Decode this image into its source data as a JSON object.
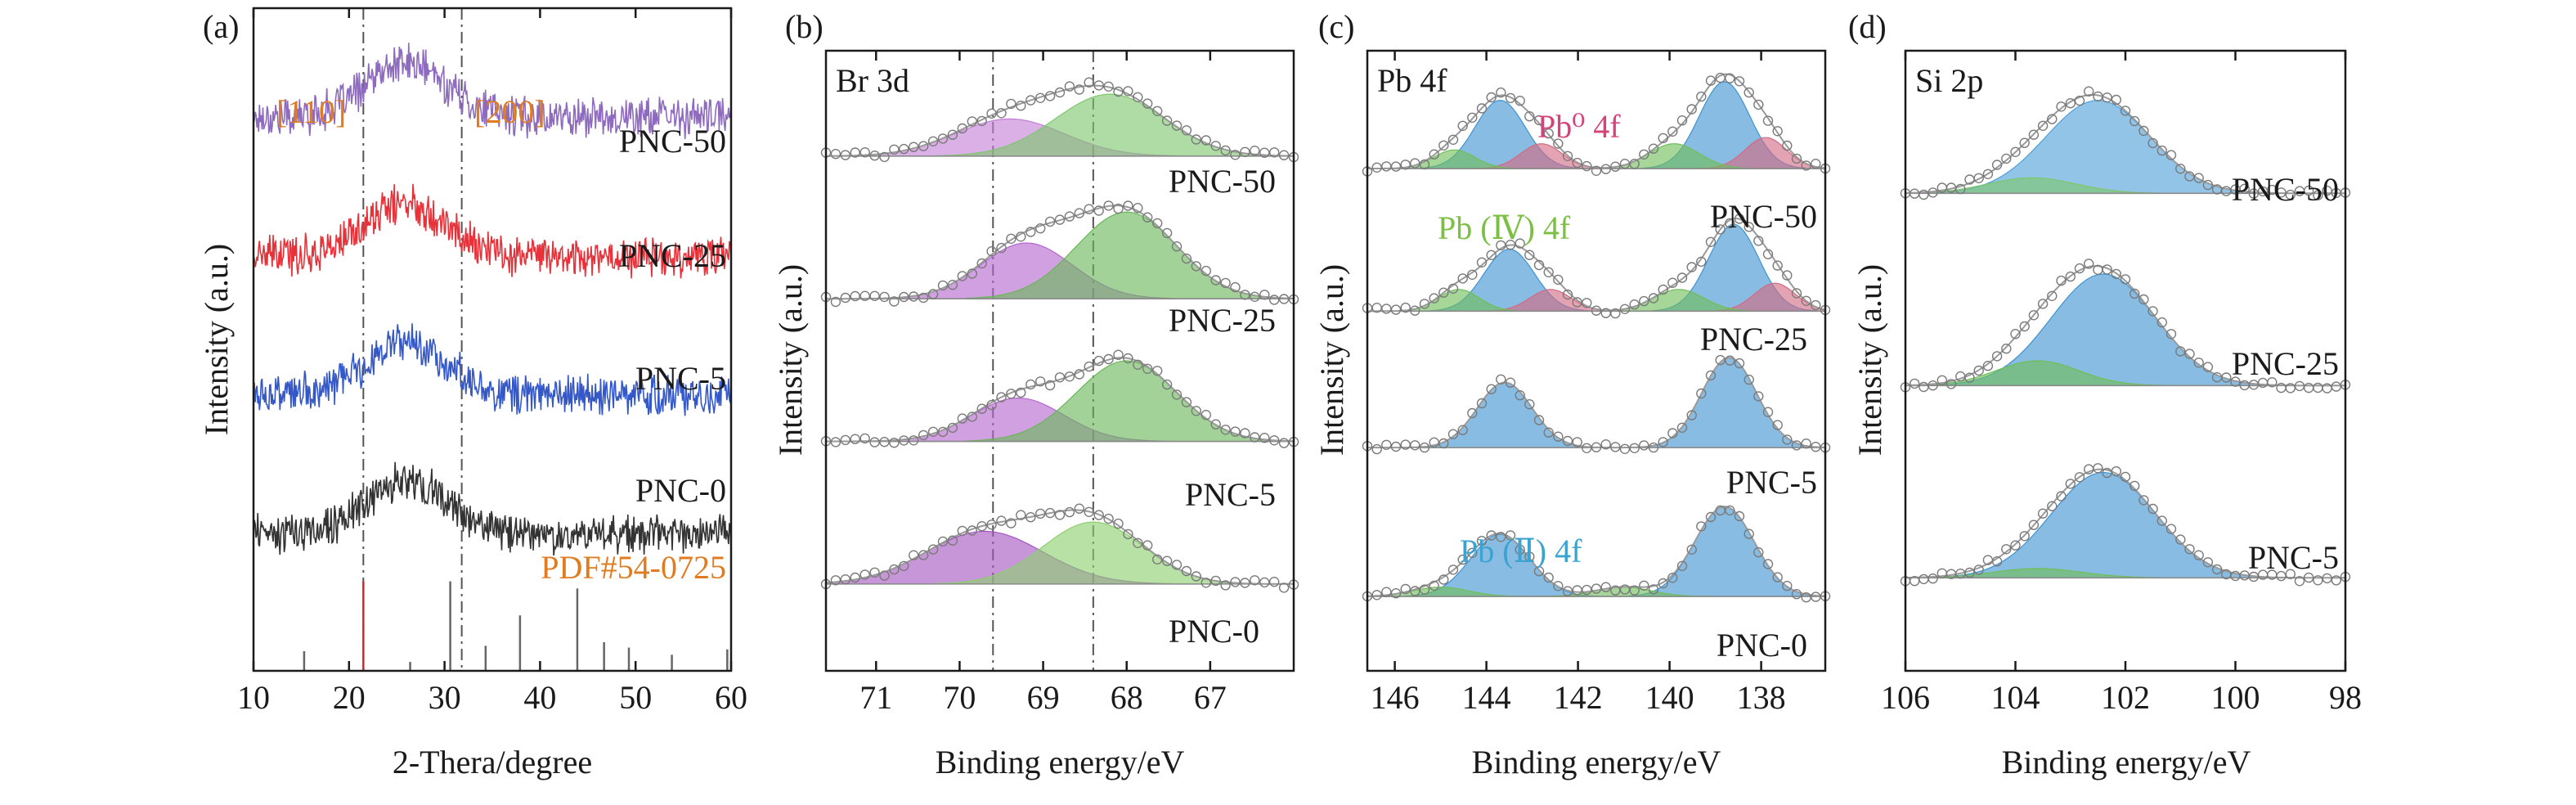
{
  "colors": {
    "axis": "#1a1a1a",
    "guide": "#555555",
    "envelope": "#9a9a9a",
    "marker": "#7a7a7a",
    "ref_red": "#d62728",
    "ref_gray": "#666666",
    "annot_orange": "#e07b1f",
    "annot_pink": "#d6437a",
    "annot_green": "#7bc043",
    "annot_blue": "#3ba3d0"
  },
  "chart_data": [
    {
      "type": "line",
      "panel_label": "(a)",
      "xlabel": "2-Thera/degree",
      "ylabel": "Intensity (a.u.)",
      "xlim": [
        10,
        60
      ],
      "x_ticks": [
        10,
        20,
        30,
        40,
        50,
        60
      ],
      "annotations": [
        "[110]",
        "[200]",
        "PDF#54-0725"
      ],
      "guides": [
        21.5,
        31.8
      ],
      "series": [
        {
          "name": "PNC-50",
          "color": "#8e6bbf",
          "baseline": 0.83,
          "peak_center": 26,
          "peak_height": 0.08
        },
        {
          "name": "PNC-25",
          "color": "#e8323a",
          "baseline": 0.62,
          "peak_center": 26,
          "peak_height": 0.08
        },
        {
          "name": "PNC-5",
          "color": "#3558c9",
          "baseline": 0.41,
          "peak_center": 26,
          "peak_height": 0.08
        },
        {
          "name": "PNC-0",
          "color": "#333333",
          "baseline": 0.2,
          "peak_center": 26,
          "peak_height": 0.08
        }
      ],
      "reference_lines": [
        {
          "x": 21.5,
          "h": 1.0,
          "color": "red"
        },
        {
          "x": 30.6,
          "h": 1.0,
          "color": "gray"
        },
        {
          "x": 37.9,
          "h": 0.62,
          "color": "gray"
        },
        {
          "x": 43.9,
          "h": 0.92,
          "color": "gray"
        },
        {
          "x": 15.3,
          "h": 0.22,
          "color": "gray"
        },
        {
          "x": 26.4,
          "h": 0.1,
          "color": "gray"
        },
        {
          "x": 34.3,
          "h": 0.28,
          "color": "gray"
        },
        {
          "x": 46.7,
          "h": 0.32,
          "color": "gray"
        },
        {
          "x": 49.3,
          "h": 0.26,
          "color": "gray"
        },
        {
          "x": 53.8,
          "h": 0.18,
          "color": "gray"
        },
        {
          "x": 59.6,
          "h": 0.24,
          "color": "gray"
        }
      ]
    },
    {
      "type": "line",
      "panel_label": "(b)",
      "corner_label": "Br 3d",
      "xlabel": "Binding energy/eV",
      "ylabel": "Intensity (a.u.)",
      "xlim": [
        71.6,
        66.0
      ],
      "x_ticks": [
        71,
        70,
        69,
        68,
        67
      ],
      "guides": [
        69.6,
        68.4
      ],
      "series": [
        {
          "name": "PNC-50",
          "baseline": 0.83,
          "components": [
            {
              "center": 69.4,
              "height": 0.06,
              "width": 0.65,
              "color": "#c37fd6"
            },
            {
              "center": 68.2,
              "height": 0.1,
              "width": 0.65,
              "color": "#7ec66c"
            }
          ]
        },
        {
          "name": "PNC-25",
          "baseline": 0.6,
          "components": [
            {
              "center": 69.2,
              "height": 0.09,
              "width": 0.55,
              "color": "#b566cf"
            },
            {
              "center": 68.0,
              "height": 0.14,
              "width": 0.6,
              "color": "#69b758"
            }
          ]
        },
        {
          "name": "PNC-5",
          "baseline": 0.37,
          "components": [
            {
              "center": 69.3,
              "height": 0.07,
              "width": 0.55,
              "color": "#b566cf"
            },
            {
              "center": 68.0,
              "height": 0.13,
              "width": 0.6,
              "color": "#69b758"
            }
          ]
        },
        {
          "name": "PNC-0",
          "baseline": 0.14,
          "components": [
            {
              "center": 69.7,
              "height": 0.085,
              "width": 0.7,
              "color": "#a455c2"
            },
            {
              "center": 68.4,
              "height": 0.1,
              "width": 0.6,
              "color": "#8ccf6e"
            }
          ]
        }
      ]
    },
    {
      "type": "line",
      "panel_label": "(c)",
      "corner_label": "Pb 4f",
      "xlabel": "Binding energy/eV",
      "ylabel": "Intensity (a.u.)",
      "xlim": [
        146.6,
        136.6
      ],
      "x_ticks": [
        146,
        144,
        142,
        140,
        138
      ],
      "annotations": [
        "Pb⁰ 4f",
        "Pb (Ⅳ) 4f",
        "Pb (Ⅱ) 4f"
      ],
      "series": [
        {
          "name": "PNC-50",
          "baseline": 0.81,
          "components": [
            {
              "center": 143.7,
              "height": 0.11,
              "width": 0.55,
              "color": "#3f93d1"
            },
            {
              "center": 138.8,
              "height": 0.14,
              "width": 0.55,
              "color": "#3f93d1"
            },
            {
              "center": 142.8,
              "height": 0.04,
              "width": 0.45,
              "color": "#d46a82"
            },
            {
              "center": 137.9,
              "height": 0.05,
              "width": 0.45,
              "color": "#d46a82"
            },
            {
              "center": 144.7,
              "height": 0.03,
              "width": 0.45,
              "color": "#6fbf58"
            },
            {
              "center": 139.9,
              "height": 0.04,
              "width": 0.55,
              "color": "#6fbf58"
            }
          ]
        },
        {
          "name": "PNC-25",
          "baseline": 0.58,
          "components": [
            {
              "center": 143.5,
              "height": 0.1,
              "width": 0.55,
              "color": "#3f93d1"
            },
            {
              "center": 138.6,
              "height": 0.14,
              "width": 0.55,
              "color": "#3f93d1"
            },
            {
              "center": 142.6,
              "height": 0.035,
              "width": 0.45,
              "color": "#d46a82"
            },
            {
              "center": 137.7,
              "height": 0.045,
              "width": 0.45,
              "color": "#d46a82"
            },
            {
              "center": 144.6,
              "height": 0.035,
              "width": 0.45,
              "color": "#6fbf58"
            },
            {
              "center": 139.8,
              "height": 0.035,
              "width": 0.55,
              "color": "#6fbf58"
            }
          ]
        },
        {
          "name": "PNC-5",
          "baseline": 0.36,
          "components": [
            {
              "center": 143.6,
              "height": 0.105,
              "width": 0.6,
              "color": "#3f93d1"
            },
            {
              "center": 138.7,
              "height": 0.145,
              "width": 0.6,
              "color": "#3f93d1"
            }
          ]
        },
        {
          "name": "PNC-0",
          "baseline": 0.12,
          "components": [
            {
              "center": 143.7,
              "height": 0.1,
              "width": 0.65,
              "color": "#3f93d1"
            },
            {
              "center": 138.8,
              "height": 0.145,
              "width": 0.65,
              "color": "#3f93d1"
            },
            {
              "center": 145.0,
              "height": 0.015,
              "width": 0.6,
              "color": "#6fbf58"
            },
            {
              "center": 141.0,
              "height": 0.015,
              "width": 0.6,
              "color": "#6fbf58"
            }
          ]
        }
      ]
    },
    {
      "type": "line",
      "panel_label": "(d)",
      "corner_label": "Si 2p",
      "xlabel": "Binding energy/eV",
      "ylabel": "Intensity (a.u.)",
      "xlim": [
        106,
        98
      ],
      "x_ticks": [
        106,
        104,
        102,
        100,
        98
      ],
      "series": [
        {
          "name": "PNC-50",
          "baseline": 0.77,
          "components": [
            {
              "center": 102.5,
              "height": 0.15,
              "width": 0.95,
              "color": "#4f9fd8"
            },
            {
              "center": 103.7,
              "height": 0.025,
              "width": 0.8,
              "color": "#7ec66c"
            }
          ]
        },
        {
          "name": "PNC-25",
          "baseline": 0.46,
          "components": [
            {
              "center": 102.4,
              "height": 0.18,
              "width": 0.95,
              "color": "#3f93d1"
            },
            {
              "center": 103.6,
              "height": 0.04,
              "width": 0.75,
              "color": "#6fbf58"
            }
          ]
        },
        {
          "name": "PNC-5",
          "baseline": 0.15,
          "components": [
            {
              "center": 102.4,
              "height": 0.17,
              "width": 0.95,
              "color": "#3f93d1"
            },
            {
              "center": 103.6,
              "height": 0.015,
              "width": 0.8,
              "color": "#6fbf58"
            }
          ]
        }
      ]
    }
  ]
}
